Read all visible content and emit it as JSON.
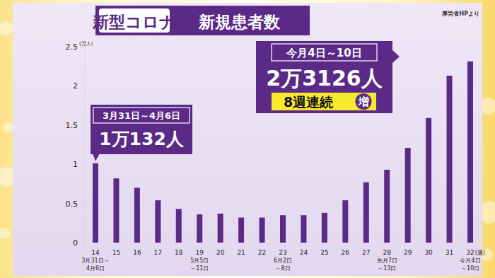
{
  "chart_data": {
    "type": "bar",
    "title": "新型コロナ",
    "subtitle": "新規患者数",
    "source": "厚労省HPより",
    "y_unit": "(万人)",
    "x_unit": "(週)",
    "categories": [
      "14",
      "15",
      "16",
      "17",
      "18",
      "19",
      "20",
      "21",
      "22",
      "23",
      "24",
      "25",
      "26",
      "27",
      "28",
      "29",
      "30",
      "31",
      "32"
    ],
    "category_sublabels": [
      [
        "3月31日～",
        "4月6日"
      ],
      null,
      null,
      null,
      null,
      [
        "5月5日",
        "～11日"
      ],
      null,
      null,
      null,
      [
        "6月2日",
        "～8日"
      ],
      null,
      null,
      null,
      null,
      [
        "先月7日",
        "～13日"
      ],
      null,
      null,
      null,
      [
        "今月4日",
        "～10日"
      ]
    ],
    "values": [
      1.0132,
      0.82,
      0.7,
      0.54,
      0.43,
      0.36,
      0.37,
      0.32,
      0.32,
      0.35,
      0.35,
      0.38,
      0.54,
      0.77,
      0.93,
      1.21,
      1.59,
      2.13,
      2.3126
    ],
    "color": "#5b2a86",
    "ylim": [
      0,
      2.5
    ],
    "yticks": [
      0,
      0.5,
      1,
      1.5,
      2,
      2.5
    ],
    "grid": false,
    "annotations": [
      {
        "category": "14",
        "lines": [
          "3月31日～4月6日",
          "1万132人"
        ]
      },
      {
        "category": "32",
        "lines": [
          "今月4日～10日",
          "2万3126人"
        ],
        "badge": "8週連続",
        "badge_mark": "増"
      }
    ]
  }
}
